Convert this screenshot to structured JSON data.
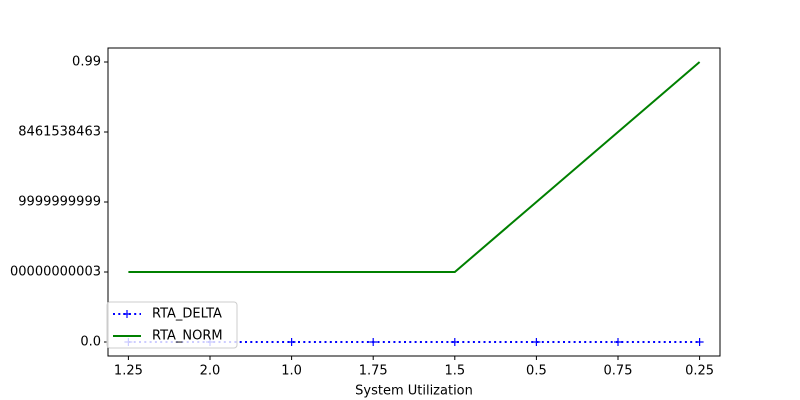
{
  "chart_data": {
    "type": "line",
    "xlabel": "System Utilization",
    "categories": [
      "1.25",
      "2.0",
      "1.0",
      "1.75",
      "1.5",
      "0.5",
      "0.75",
      "0.25"
    ],
    "series": [
      {
        "name": "RTA_DELTA",
        "color": "#0000ff",
        "style": "dotted",
        "marker": "+",
        "values": [
          0,
          0,
          0,
          0,
          0,
          0,
          0,
          0
        ]
      },
      {
        "name": "RTA_NORM",
        "color": "#008000",
        "style": "solid",
        "values": [
          0.2475,
          0.2475,
          0.2475,
          0.2475,
          0.2475,
          0.495,
          0.7425,
          0.99
        ]
      }
    ],
    "ylim": [
      -0.0495,
      1.0395
    ],
    "yticks": [
      {
        "value": 0,
        "label": "0.0"
      },
      {
        "value": 0.2475,
        "label": "00000000003"
      },
      {
        "value": 0.495,
        "label": "9999999999"
      },
      {
        "value": 0.7425,
        "label": "8461538463"
      },
      0.99
    ],
    "legend": "lower left"
  }
}
